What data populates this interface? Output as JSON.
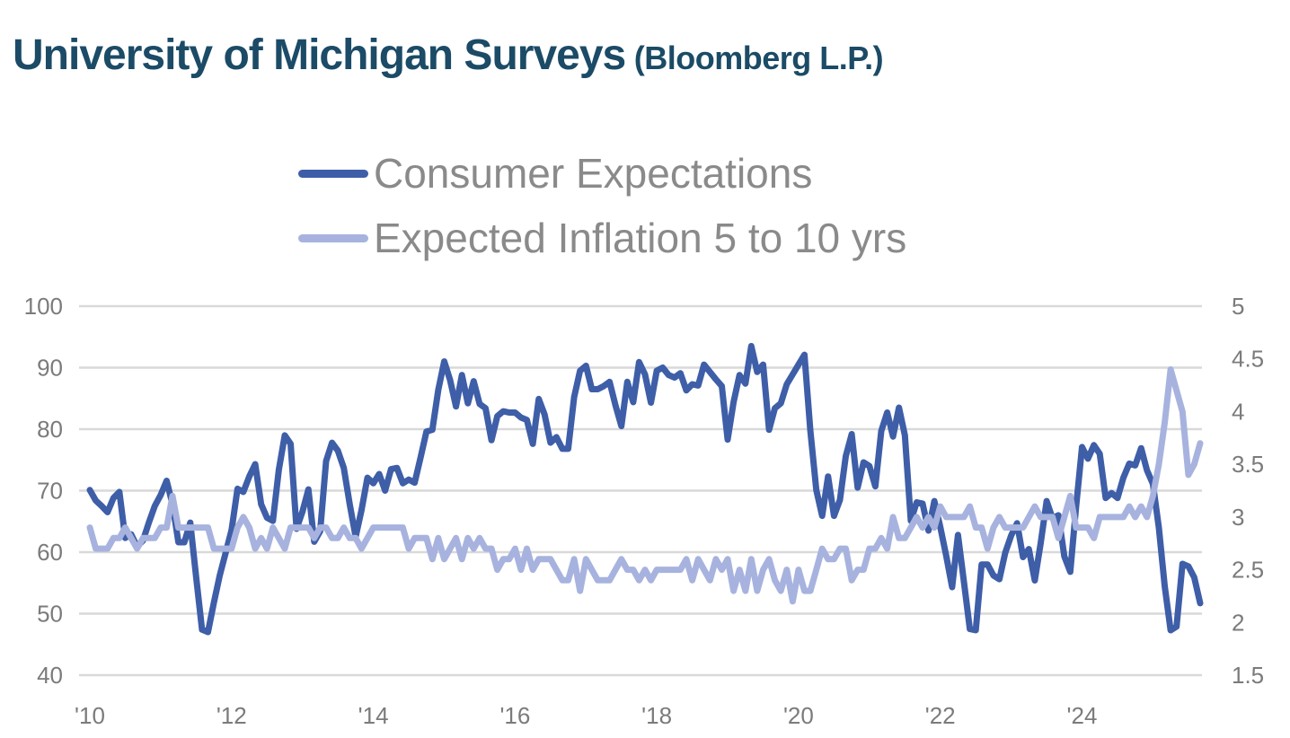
{
  "title": {
    "main": "University of Michigan Surveys",
    "source": "(Bloomberg L.P.)"
  },
  "legend": [
    {
      "label": "Consumer Expectations",
      "color": "#3E5EA8"
    },
    {
      "label": "Expected Inflation 5 to 10 yrs",
      "color": "#A7B3DE"
    }
  ],
  "colors": {
    "title": "#1B4B66",
    "legend_text": "#8A8A8A",
    "axis_text": "#7B7B7B",
    "grid": "#D9D9D9",
    "background": "#FFFFFF",
    "series_dark": "#3E5EA8",
    "series_light": "#A7B3DE"
  },
  "chart_data": {
    "type": "line",
    "title": "University of Michigan Surveys (Bloomberg L.P.)",
    "frequency": "monthly",
    "x_start": "2010-01",
    "x_end": "2025-09",
    "x_tick_labels": [
      "'10",
      "'12",
      "'14",
      "'16",
      "'18",
      "'20",
      "'22",
      "'24"
    ],
    "x_tick_interval_years": 2,
    "grid": true,
    "legend_position": "top-center",
    "left_axis": {
      "range": [
        40,
        100
      ],
      "ticks": [
        "100",
        "90",
        "80",
        "70",
        "60",
        "50",
        "40"
      ],
      "tick_values": [
        100,
        90,
        80,
        70,
        60,
        50,
        40
      ]
    },
    "right_axis": {
      "range": [
        1.5,
        5
      ],
      "ticks": [
        "5",
        "4.5",
        "4",
        "3.5",
        "3",
        "2.5",
        "2",
        "1.5"
      ],
      "tick_values": [
        5,
        4.5,
        4,
        3.5,
        3,
        2.5,
        2,
        1.5
      ]
    },
    "series": [
      {
        "name": "Consumer Expectations",
        "axis": "left",
        "color": "#3E5EA8",
        "values": [
          70.1,
          68.4,
          67.5,
          66.5,
          68.8,
          69.8,
          62.3,
          62.9,
          60.9,
          61.9,
          64.8,
          67.5,
          69.3,
          71.6,
          67.8,
          61.6,
          61.6,
          64.8,
          56.0,
          47.4,
          47.0,
          51.8,
          56.2,
          59.9,
          63.6,
          70.3,
          69.8,
          72.3,
          74.3,
          67.8,
          65.6,
          65.1,
          73.4,
          79.0,
          77.6,
          63.8,
          66.6,
          70.2,
          61.7,
          63.4,
          74.8,
          77.8,
          76.5,
          73.7,
          67.8,
          62.5,
          66.8,
          72.1,
          71.2,
          72.7,
          70.0,
          73.5,
          73.7,
          71.2,
          71.8,
          71.3,
          75.4,
          79.6,
          79.9,
          86.4,
          91.0,
          88.0,
          83.7,
          88.8,
          84.2,
          87.8,
          84.1,
          83.4,
          78.2,
          82.1,
          82.9,
          82.7,
          82.7,
          81.9,
          81.5,
          77.6,
          84.9,
          82.4,
          77.8,
          78.7,
          76.8,
          76.8,
          85.2,
          89.5,
          90.3,
          86.5,
          86.5,
          87.0,
          87.7,
          83.9,
          80.5,
          87.7,
          84.4,
          90.9,
          88.9,
          84.3,
          89.5,
          90.0,
          88.8,
          88.4,
          89.1,
          86.3,
          87.3,
          87.1,
          90.5,
          89.3,
          88.1,
          87.0,
          78.3,
          84.4,
          88.8,
          87.4,
          93.5,
          89.3,
          90.5,
          79.9,
          83.4,
          84.2,
          87.3,
          88.9,
          90.5,
          92.1,
          79.7,
          70.1,
          65.9,
          72.3,
          65.9,
          68.5,
          75.6,
          79.2,
          70.5,
          74.6,
          74.0,
          70.7,
          79.7,
          82.7,
          78.8,
          83.5,
          79.0,
          65.1,
          68.1,
          67.9,
          63.5,
          68.3,
          64.1,
          59.4,
          54.3,
          62.8,
          55.2,
          47.5,
          47.3,
          58.0,
          58.0,
          56.2,
          55.6,
          59.9,
          62.7,
          64.7,
          59.2,
          60.5,
          55.4,
          61.5,
          68.3,
          65.5,
          66.0,
          59.3,
          56.8,
          67.4,
          77.1,
          75.2,
          77.4,
          76.0,
          68.8,
          69.6,
          68.8,
          72.1,
          74.4,
          74.1,
          76.9,
          73.3,
          71.1,
          64.0,
          54.4,
          47.3,
          47.9,
          58.1,
          57.7,
          55.9,
          51.7
        ]
      },
      {
        "name": "Expected Inflation 5 to 10 yrs",
        "axis": "right",
        "color": "#A7B3DE",
        "values": [
          2.9,
          2.7,
          2.7,
          2.7,
          2.8,
          2.8,
          2.9,
          2.8,
          2.7,
          2.8,
          2.8,
          2.8,
          2.9,
          2.9,
          3.2,
          2.9,
          2.9,
          2.9,
          2.9,
          2.9,
          2.9,
          2.7,
          2.7,
          2.7,
          2.7,
          2.9,
          3.0,
          2.9,
          2.7,
          2.8,
          2.7,
          2.9,
          2.8,
          2.7,
          2.9,
          2.9,
          2.9,
          2.9,
          2.8,
          2.9,
          2.9,
          2.8,
          2.8,
          2.9,
          2.8,
          2.8,
          2.7,
          2.8,
          2.9,
          2.9,
          2.9,
          2.9,
          2.9,
          2.9,
          2.7,
          2.8,
          2.8,
          2.8,
          2.6,
          2.8,
          2.6,
          2.7,
          2.8,
          2.6,
          2.8,
          2.7,
          2.8,
          2.7,
          2.7,
          2.5,
          2.6,
          2.6,
          2.7,
          2.5,
          2.7,
          2.5,
          2.6,
          2.6,
          2.6,
          2.5,
          2.4,
          2.4,
          2.6,
          2.3,
          2.6,
          2.5,
          2.4,
          2.4,
          2.4,
          2.5,
          2.6,
          2.5,
          2.5,
          2.4,
          2.5,
          2.4,
          2.5,
          2.5,
          2.5,
          2.5,
          2.5,
          2.6,
          2.4,
          2.6,
          2.5,
          2.4,
          2.6,
          2.5,
          2.6,
          2.3,
          2.5,
          2.3,
          2.6,
          2.3,
          2.5,
          2.6,
          2.4,
          2.3,
          2.5,
          2.2,
          2.5,
          2.3,
          2.3,
          2.5,
          2.7,
          2.6,
          2.6,
          2.7,
          2.7,
          2.4,
          2.5,
          2.5,
          2.7,
          2.7,
          2.8,
          2.7,
          3.0,
          2.8,
          2.8,
          2.9,
          3.0,
          2.9,
          3.0,
          2.9,
          3.1,
          3.0,
          3.0,
          3.0,
          3.0,
          3.1,
          2.9,
          2.9,
          2.7,
          2.9,
          3.0,
          2.9,
          2.9,
          2.9,
          2.9,
          3.0,
          3.1,
          3.0,
          3.0,
          3.0,
          2.8,
          3.0,
          3.2,
          2.9,
          2.9,
          2.9,
          2.8,
          3.0,
          3.0,
          3.0,
          3.0,
          3.0,
          3.1,
          3.0,
          3.1,
          3.0,
          3.2,
          3.5,
          3.9,
          4.4,
          4.2,
          4.0,
          3.4,
          3.5,
          3.7
        ]
      }
    ]
  }
}
